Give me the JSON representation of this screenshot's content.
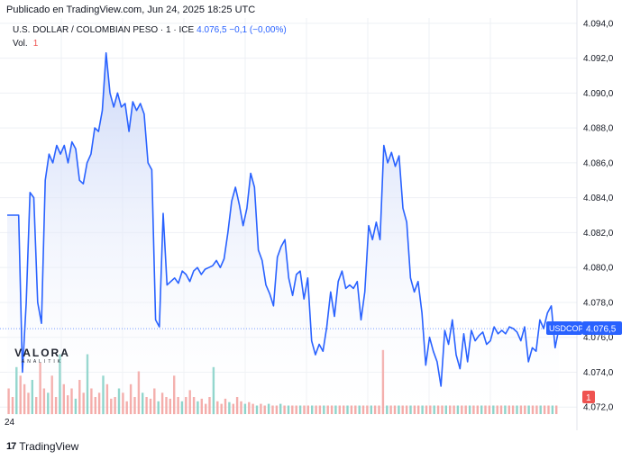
{
  "header": {
    "published": "Publicado en TradingView.com, Jun 24, 2025 18:25 UTC"
  },
  "legend": {
    "symbol": "U.S. DOLLAR / COLOMBIAN PESO · 1 · ICE",
    "value": "4.076,5 −0,1 (−0,00%)",
    "vol_label": "Vol.",
    "vol_value": "1"
  },
  "watermark": {
    "name": "VALORA",
    "sub": "ANALITIK"
  },
  "footer": {
    "brand": "TradingView",
    "left_tick": "24"
  },
  "colors": {
    "line": "#2962ff",
    "area_top": "#c7d4f7",
    "vol_up": "#7fcfc4",
    "vol_down": "#f3a29f",
    "price_tag": "#2962ff",
    "vol_tag": "#ef5350",
    "grid": "#eef0f4"
  },
  "chart_data": {
    "type": "area",
    "title": "U.S. DOLLAR / COLOMBIAN PESO · 1 · ICE",
    "y_ticks": [
      {
        "value": 4072,
        "label": "4.072,0"
      },
      {
        "value": 4074,
        "label": "4.074,0"
      },
      {
        "value": 4076,
        "label": "4.076,0"
      },
      {
        "value": 4078,
        "label": "4.078,0"
      },
      {
        "value": 4080,
        "label": "4.080,0"
      },
      {
        "value": 4082,
        "label": "4.082,0"
      },
      {
        "value": 4084,
        "label": "4.084,0"
      },
      {
        "value": 4086,
        "label": "4.086,0"
      },
      {
        "value": 4088,
        "label": "4.088,0"
      },
      {
        "value": 4090,
        "label": "4.090,0"
      },
      {
        "value": 4092,
        "label": "4.092,0"
      },
      {
        "value": 4094,
        "label": "4.094,0"
      }
    ],
    "ylim": [
      4071.6,
      4094.3
    ],
    "grid": true,
    "last_price": {
      "value": 4076.5,
      "symbol_label": "USDCOP",
      "price_label": "4.076,5"
    },
    "volume_tag": "1",
    "series": [
      {
        "values": [
          4083,
          4083,
          4083,
          4083,
          4074,
          4078,
          4084.3,
          4084,
          4078,
          4076.8,
          4085,
          4086.5,
          4086,
          4087,
          4086.5,
          4087,
          4086,
          4087.2,
          4086.8,
          4085,
          4084.8,
          4086,
          4086.5,
          4088,
          4087.8,
          4089,
          4092.3,
          4090,
          4089.2,
          4090,
          4089.2,
          4089.4,
          4087.8,
          4089.5,
          4089,
          4089.4,
          4088.8,
          4086,
          4085.6,
          4077,
          4076.6,
          4083.1,
          4079,
          4079.2,
          4079.4,
          4079.1,
          4079.8,
          4079.6,
          4079.2,
          4079.8,
          4080,
          4079.6,
          4079.9,
          4080,
          4080.1,
          4080.4,
          4080,
          4080.5,
          4082,
          4083.8,
          4084.6,
          4083.6,
          4082.4,
          4083.4,
          4085.4,
          4084.6,
          4081,
          4080.4,
          4079,
          4078.5,
          4077.8,
          4080.6,
          4081.2,
          4081.6,
          4079.4,
          4078.4,
          4079.6,
          4079.8,
          4078.2,
          4079.4,
          4075.8,
          4075,
          4075.6,
          4075.2,
          4076.6,
          4078.6,
          4077.2,
          4079.2,
          4079.8,
          4078.8,
          4079,
          4078.8,
          4079.2,
          4077,
          4078.6,
          4082.4,
          4081.6,
          4082.6,
          4081.6,
          4087,
          4086,
          4086.6,
          4085.8,
          4086.4,
          4083.4,
          4082.6,
          4079.4,
          4078.6,
          4079.2,
          4077.4,
          4074.4,
          4076,
          4075.2,
          4074.6,
          4073.2,
          4076.4,
          4075.6,
          4077,
          4075,
          4074.2,
          4076.2,
          4074.6,
          4076.4,
          4075.8,
          4076.1,
          4076.3,
          4075.6,
          4075.8,
          4076.6,
          4076.2,
          4076.4,
          4076.2,
          4076.6,
          4076.5,
          4076.3,
          4075.8,
          4076.6,
          4074.6,
          4075.4,
          4075.2,
          4077,
          4076.5,
          4077.4,
          4077.8,
          4075.4,
          4076.5
        ]
      }
    ],
    "volume": [
      {
        "h": 30,
        "up": false
      },
      {
        "h": 20,
        "up": false
      },
      {
        "h": 55,
        "up": true
      },
      {
        "h": 45,
        "up": false
      },
      {
        "h": 35,
        "up": false
      },
      {
        "h": 25,
        "up": false
      },
      {
        "h": 40,
        "up": true
      },
      {
        "h": 20,
        "up": false
      },
      {
        "h": 60,
        "up": false
      },
      {
        "h": 30,
        "up": false
      },
      {
        "h": 25,
        "up": true
      },
      {
        "h": 45,
        "up": false
      },
      {
        "h": 20,
        "up": false
      },
      {
        "h": 70,
        "up": true
      },
      {
        "h": 35,
        "up": false
      },
      {
        "h": 22,
        "up": false
      },
      {
        "h": 30,
        "up": false
      },
      {
        "h": 18,
        "up": true
      },
      {
        "h": 40,
        "up": false
      },
      {
        "h": 25,
        "up": false
      },
      {
        "h": 70,
        "up": true
      },
      {
        "h": 30,
        "up": false
      },
      {
        "h": 20,
        "up": false
      },
      {
        "h": 25,
        "up": false
      },
      {
        "h": 45,
        "up": true
      },
      {
        "h": 35,
        "up": false
      },
      {
        "h": 18,
        "up": false
      },
      {
        "h": 20,
        "up": false
      },
      {
        "h": 30,
        "up": true
      },
      {
        "h": 25,
        "up": false
      },
      {
        "h": 15,
        "up": false
      },
      {
        "h": 35,
        "up": false
      },
      {
        "h": 20,
        "up": false
      },
      {
        "h": 50,
        "up": false
      },
      {
        "h": 25,
        "up": true
      },
      {
        "h": 20,
        "up": false
      },
      {
        "h": 18,
        "up": false
      },
      {
        "h": 30,
        "up": false
      },
      {
        "h": 15,
        "up": true
      },
      {
        "h": 25,
        "up": false
      },
      {
        "h": 20,
        "up": false
      },
      {
        "h": 18,
        "up": false
      },
      {
        "h": 45,
        "up": false
      },
      {
        "h": 20,
        "up": false
      },
      {
        "h": 15,
        "up": true
      },
      {
        "h": 20,
        "up": false
      },
      {
        "h": 28,
        "up": false
      },
      {
        "h": 20,
        "up": false
      },
      {
        "h": 15,
        "up": true
      },
      {
        "h": 18,
        "up": false
      },
      {
        "h": 12,
        "up": false
      },
      {
        "h": 20,
        "up": false
      },
      {
        "h": 55,
        "up": true
      },
      {
        "h": 15,
        "up": false
      },
      {
        "h": 12,
        "up": false
      },
      {
        "h": 18,
        "up": false
      },
      {
        "h": 14,
        "up": true
      },
      {
        "h": 12,
        "up": false
      },
      {
        "h": 20,
        "up": false
      },
      {
        "h": 15,
        "up": false
      },
      {
        "h": 12,
        "up": true
      },
      {
        "h": 14,
        "up": false
      },
      {
        "h": 12,
        "up": false
      },
      {
        "h": 10,
        "up": true
      },
      {
        "h": 12,
        "up": false
      },
      {
        "h": 10,
        "up": false
      },
      {
        "h": 12,
        "up": true
      },
      {
        "h": 10,
        "up": false
      },
      {
        "h": 10,
        "up": false
      },
      {
        "h": 12,
        "up": true
      },
      {
        "h": 10,
        "up": false
      },
      {
        "h": 10,
        "up": true
      },
      {
        "h": 10,
        "up": false
      },
      {
        "h": 10,
        "up": false
      },
      {
        "h": 10,
        "up": true
      },
      {
        "h": 10,
        "up": false
      },
      {
        "h": 10,
        "up": false
      },
      {
        "h": 10,
        "up": true
      },
      {
        "h": 10,
        "up": false
      },
      {
        "h": 10,
        "up": false
      },
      {
        "h": 10,
        "up": true
      },
      {
        "h": 10,
        "up": false
      },
      {
        "h": 10,
        "up": false
      },
      {
        "h": 10,
        "up": true
      },
      {
        "h": 10,
        "up": false
      },
      {
        "h": 10,
        "up": false
      },
      {
        "h": 10,
        "up": true
      },
      {
        "h": 10,
        "up": false
      },
      {
        "h": 10,
        "up": false
      },
      {
        "h": 10,
        "up": true
      },
      {
        "h": 10,
        "up": false
      },
      {
        "h": 10,
        "up": false
      },
      {
        "h": 10,
        "up": true
      },
      {
        "h": 10,
        "up": false
      },
      {
        "h": 10,
        "up": false
      },
      {
        "h": 75,
        "up": false
      },
      {
        "h": 10,
        "up": true
      },
      {
        "h": 10,
        "up": false
      },
      {
        "h": 10,
        "up": false
      },
      {
        "h": 10,
        "up": true
      },
      {
        "h": 10,
        "up": false
      },
      {
        "h": 10,
        "up": false
      },
      {
        "h": 10,
        "up": true
      },
      {
        "h": 10,
        "up": false
      },
      {
        "h": 10,
        "up": false
      },
      {
        "h": 10,
        "up": true
      },
      {
        "h": 10,
        "up": false
      },
      {
        "h": 10,
        "up": false
      },
      {
        "h": 10,
        "up": true
      },
      {
        "h": 10,
        "up": false
      },
      {
        "h": 10,
        "up": false
      },
      {
        "h": 10,
        "up": true
      },
      {
        "h": 10,
        "up": false
      },
      {
        "h": 10,
        "up": false
      },
      {
        "h": 10,
        "up": true
      },
      {
        "h": 10,
        "up": false
      },
      {
        "h": 10,
        "up": false
      },
      {
        "h": 10,
        "up": true
      },
      {
        "h": 10,
        "up": false
      },
      {
        "h": 10,
        "up": false
      },
      {
        "h": 10,
        "up": true
      },
      {
        "h": 10,
        "up": false
      },
      {
        "h": 10,
        "up": false
      },
      {
        "h": 10,
        "up": true
      },
      {
        "h": 10,
        "up": false
      },
      {
        "h": 10,
        "up": false
      },
      {
        "h": 10,
        "up": true
      },
      {
        "h": 10,
        "up": false
      },
      {
        "h": 10,
        "up": false
      },
      {
        "h": 10,
        "up": true
      },
      {
        "h": 10,
        "up": false
      },
      {
        "h": 10,
        "up": false
      },
      {
        "h": 10,
        "up": true
      },
      {
        "h": 10,
        "up": false
      },
      {
        "h": 10,
        "up": false
      },
      {
        "h": 10,
        "up": true
      },
      {
        "h": 10,
        "up": false
      },
      {
        "h": 10,
        "up": false
      },
      {
        "h": 10,
        "up": true
      },
      {
        "h": 10,
        "up": false
      }
    ]
  }
}
